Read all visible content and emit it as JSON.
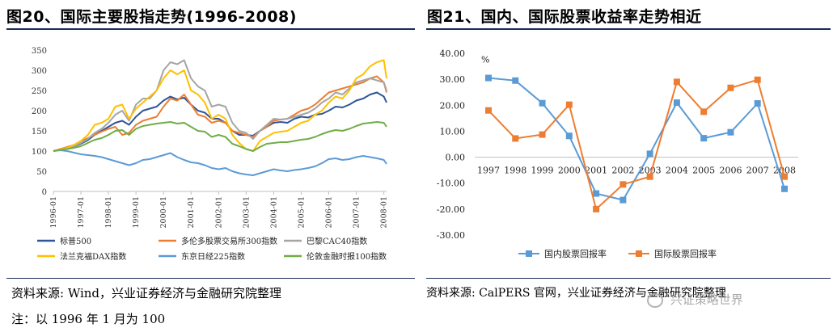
{
  "left_panel": {
    "title": "图20、国际主要股指走势(1996-2008)",
    "source": "资料来源: Wind，兴业证券经济与金融研究院整理",
    "note": "注：以 1996 年 1 月为 100"
  },
  "right_panel": {
    "title": "图21、国内、国际股票收益率走势相近",
    "source": "资料来源: CalPERS 官网，兴业证券经济与金融研究院整理",
    "watermark": "兴证策略世界"
  },
  "colors": {
    "rule": "#1a2c5b",
    "sp500": "#2f5597",
    "ftse": "#ed7d31",
    "cac": "#a5a5a5",
    "dax": "#ffc000",
    "nikkei": "#5b9bd5",
    "ftse100": "#70ad47",
    "domestic": "#5b9bd5",
    "international": "#ed7d31"
  },
  "chart_data": [
    {
      "type": "line",
      "title": "国际主要股指走势(1996-2008)",
      "xlabel": "",
      "ylabel": "",
      "ylim": [
        0,
        350
      ],
      "yticks": [
        "0",
        "50",
        "100",
        "150",
        "200",
        "250",
        "300",
        "350"
      ],
      "x_tick_labels": [
        "1996-01",
        "1997-01",
        "1998-01",
        "1999-01",
        "2000-01",
        "2001-01",
        "2002-01",
        "2003-01",
        "2004-01",
        "2005-01",
        "2006-01",
        "2007-01",
        "2008-01"
      ],
      "x": [
        1996.0,
        1996.25,
        1996.5,
        1996.75,
        1997.0,
        1997.25,
        1997.5,
        1997.75,
        1998.0,
        1998.25,
        1998.5,
        1998.75,
        1999.0,
        1999.25,
        1999.5,
        1999.75,
        2000.0,
        2000.25,
        2000.5,
        2000.75,
        2001.0,
        2001.25,
        2001.5,
        2001.75,
        2002.0,
        2002.25,
        2002.5,
        2002.75,
        2003.0,
        2003.25,
        2003.5,
        2003.75,
        2004.0,
        2004.25,
        2004.5,
        2004.75,
        2005.0,
        2005.25,
        2005.5,
        2005.75,
        2006.0,
        2006.25,
        2006.5,
        2006.75,
        2007.0,
        2007.25,
        2007.5,
        2007.75,
        2008.0,
        2008.1
      ],
      "series": [
        {
          "name": "标普500",
          "values": [
            100,
            103,
            106,
            112,
            118,
            127,
            140,
            150,
            160,
            170,
            175,
            165,
            185,
            200,
            205,
            210,
            225,
            235,
            228,
            232,
            215,
            200,
            195,
            180,
            180,
            170,
            150,
            140,
            140,
            138,
            150,
            160,
            170,
            172,
            170,
            180,
            185,
            183,
            190,
            192,
            200,
            210,
            208,
            215,
            225,
            230,
            240,
            245,
            235,
            220
          ]
        },
        {
          "name": "多伦多股票交易所300指数",
          "values": [
            100,
            105,
            110,
            115,
            125,
            132,
            140,
            148,
            155,
            160,
            140,
            145,
            165,
            175,
            180,
            185,
            210,
            230,
            225,
            240,
            215,
            190,
            185,
            170,
            175,
            170,
            150,
            145,
            140,
            135,
            150,
            160,
            175,
            178,
            180,
            190,
            200,
            205,
            215,
            230,
            245,
            250,
            255,
            260,
            265,
            270,
            280,
            285,
            270,
            245
          ]
        },
        {
          "name": "巴黎CAC40指数",
          "values": [
            100,
            103,
            107,
            112,
            120,
            130,
            145,
            155,
            170,
            190,
            200,
            175,
            215,
            230,
            230,
            250,
            300,
            320,
            315,
            325,
            280,
            260,
            250,
            210,
            215,
            210,
            170,
            150,
            145,
            130,
            150,
            165,
            180,
            178,
            180,
            185,
            190,
            195,
            205,
            220,
            230,
            245,
            240,
            255,
            270,
            275,
            280,
            275,
            270,
            250
          ]
        },
        {
          "name": "法兰克福DAX指数",
          "values": [
            100,
            104,
            108,
            115,
            125,
            140,
            165,
            170,
            180,
            210,
            215,
            180,
            205,
            220,
            235,
            250,
            280,
            300,
            290,
            300,
            250,
            240,
            220,
            180,
            190,
            180,
            140,
            120,
            105,
            100,
            125,
            135,
            145,
            148,
            150,
            160,
            170,
            175,
            190,
            200,
            220,
            235,
            230,
            250,
            280,
            290,
            310,
            320,
            325,
            280
          ]
        },
        {
          "name": "东京日经225指数",
          "values": [
            100,
            102,
            100,
            96,
            92,
            90,
            88,
            85,
            80,
            75,
            70,
            65,
            70,
            78,
            80,
            85,
            90,
            95,
            85,
            78,
            72,
            70,
            65,
            58,
            55,
            58,
            50,
            45,
            42,
            40,
            45,
            50,
            55,
            52,
            50,
            53,
            55,
            58,
            62,
            70,
            80,
            82,
            78,
            80,
            85,
            88,
            85,
            82,
            78,
            68
          ]
        },
        {
          "name": "伦敦金融时报100指数",
          "values": [
            100,
            103,
            105,
            108,
            112,
            120,
            128,
            132,
            140,
            150,
            152,
            140,
            155,
            162,
            165,
            168,
            170,
            172,
            168,
            170,
            160,
            150,
            148,
            135,
            140,
            135,
            118,
            112,
            105,
            100,
            110,
            118,
            120,
            122,
            122,
            125,
            128,
            130,
            135,
            142,
            148,
            152,
            150,
            155,
            162,
            168,
            170,
            172,
            170,
            160
          ]
        }
      ]
    },
    {
      "type": "line",
      "title": "国内、国际股票收益率走势相近",
      "ylabel": "%",
      "ylim": [
        -30,
        40
      ],
      "yticks": [
        "40.00",
        "30.00",
        "20.00",
        "10.00",
        "0.00",
        "-10.00",
        "-20.00",
        "-30.00"
      ],
      "categories": [
        "1997",
        "1998",
        "1999",
        "2000",
        "2001",
        "2002",
        "2003",
        "2004",
        "2005",
        "2006",
        "2007",
        "2008"
      ],
      "series": [
        {
          "name": "国内股票回报率",
          "values": [
            30.5,
            29.5,
            20.8,
            8.2,
            -14.0,
            -16.5,
            1.3,
            21.0,
            7.3,
            9.6,
            20.7,
            -12.2
          ]
        },
        {
          "name": "国际股票回报率",
          "values": [
            18.0,
            7.2,
            8.7,
            20.2,
            -20.0,
            -10.5,
            -7.5,
            29.0,
            17.5,
            26.7,
            29.8,
            -7.5
          ]
        }
      ]
    }
  ]
}
